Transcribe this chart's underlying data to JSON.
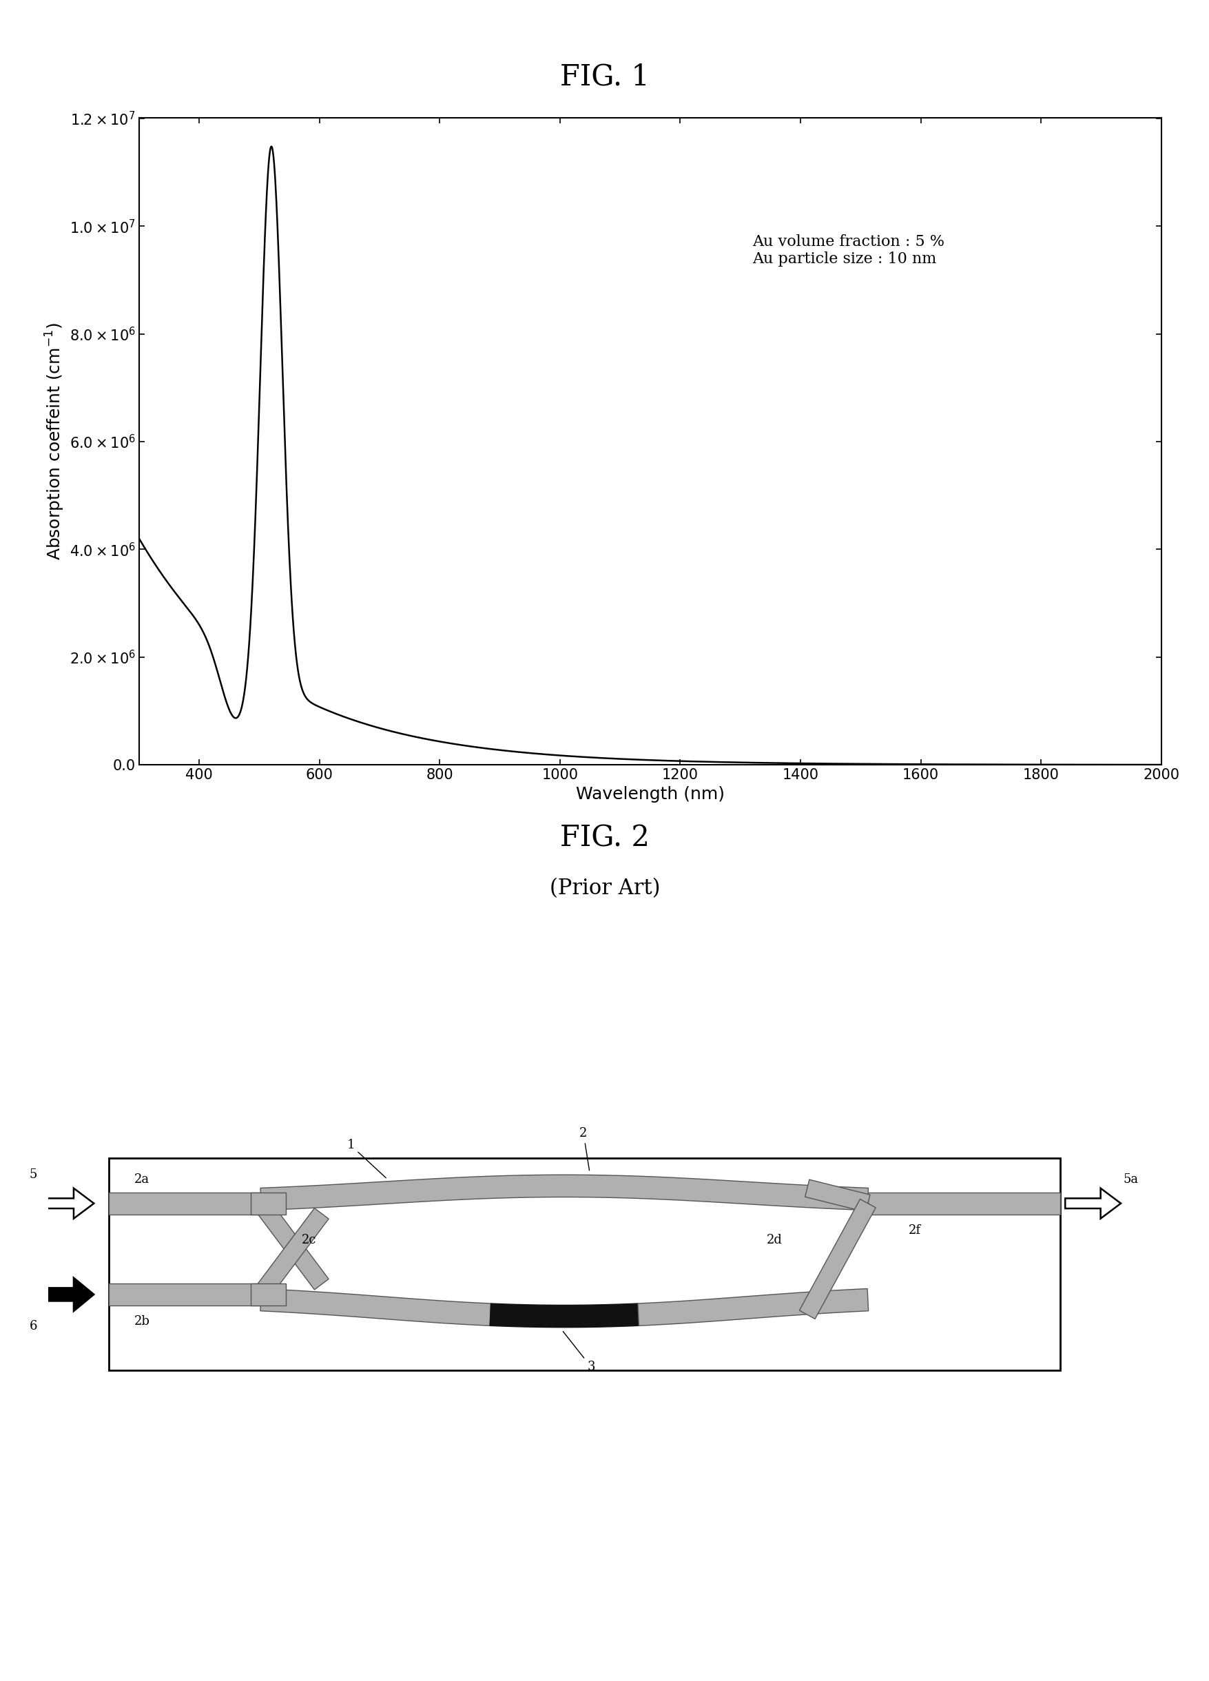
{
  "fig1_title": "FIG. 1",
  "fig2_title": "FIG. 2",
  "fig2_subtitle": "(Prior Art)",
  "annotation_line1": "Au volume fraction : 5 %",
  "annotation_line2": "Au particle size : 10 nm",
  "xlabel": "Wavelength (nm)",
  "ylabel": "Absorption coeffeint (cm⁻¹)",
  "xmin": 300,
  "xmax": 2000,
  "ymin": 0.0,
  "ymax": 12000000.0,
  "yticks": [
    0.0,
    2000000.0,
    4000000.0,
    6000000.0,
    8000000.0,
    10000000.0,
    12000000.0
  ],
  "xticks": [
    400,
    600,
    800,
    1000,
    1200,
    1400,
    1600,
    1800,
    2000
  ],
  "background_color": "#ffffff",
  "line_color": "#000000",
  "fig_label_fontsize": 30,
  "axis_label_fontsize": 18,
  "tick_fontsize": 15,
  "annotation_fontsize": 16,
  "wg_gray": "#b0b0b0",
  "wg_edge": "#555555",
  "wg_black": "#111111",
  "label_fontsize": 13
}
